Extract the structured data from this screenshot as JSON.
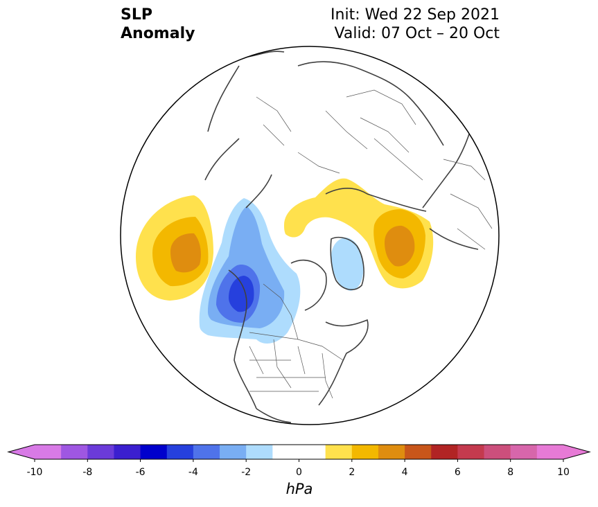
{
  "title": {
    "line1": "SLP",
    "line2": "Anomaly"
  },
  "init_text": "Init: Wed 22 Sep 2021",
  "valid_text": "Valid: 07 Oct – 20 Oct",
  "colorbar": {
    "unit": "hPa",
    "min": -10,
    "max": 10,
    "step": 1,
    "ticks": [
      "-10",
      "-8",
      "-6",
      "-4",
      "-2",
      "0",
      "2",
      "4",
      "6",
      "8",
      "10"
    ],
    "colors": [
      "#d87ae6",
      "#9f57e2",
      "#6b3bd9",
      "#3b1fcf",
      "#0000cc",
      "#2640dd",
      "#4f73ea",
      "#79aef3",
      "#aedcfd",
      "#ffffff",
      "#ffffff",
      "#ffe14d",
      "#f3b800",
      "#df8d0f",
      "#c8561a",
      "#b12424",
      "#c43a4e",
      "#cc4f7c",
      "#d766ab",
      "#e77ad6"
    ],
    "extend_low": "#d87ae6",
    "extend_high": "#e77ad6"
  },
  "map": {
    "projection": "north-polar-stereographic",
    "anomaly_features": [
      {
        "name": "north-pacific-high",
        "peak_hpa": 4
      },
      {
        "name": "western-canada-low",
        "peak_hpa": -5
      },
      {
        "name": "alaska-negative-band",
        "peak_hpa": -3
      },
      {
        "name": "greenland-negative",
        "peak_hpa": -2
      },
      {
        "name": "arctic-siberia-high",
        "peak_hpa": 2
      },
      {
        "name": "eastern-siberia-high",
        "peak_hpa": 4
      }
    ]
  }
}
